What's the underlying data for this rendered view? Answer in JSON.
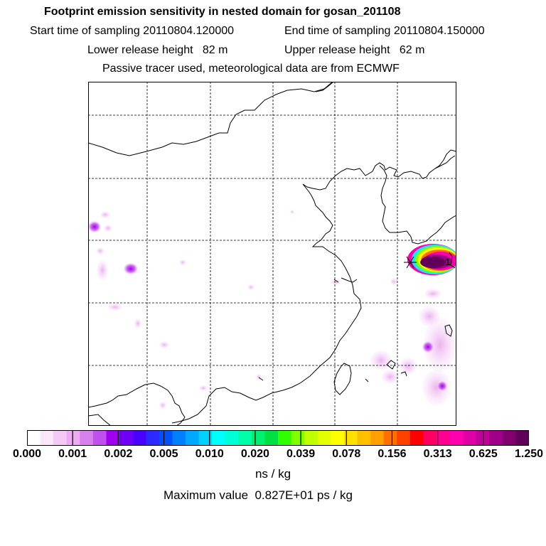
{
  "header": {
    "title": "Footprint emission sensitivity in nested domain for gosan_201108",
    "start_time": "Start time of sampling 20110804.120000",
    "end_time": "End time of sampling 20110804.150000",
    "lower_height": "Lower release height   82 m",
    "upper_height": "Upper release height   62 m",
    "note": "Passive tracer used, meteorological data are from ECMWF"
  },
  "colorbar": {
    "tick_labels": [
      "0.000",
      "0.001",
      "0.002",
      "0.005",
      "0.010",
      "0.020",
      "0.039",
      "0.078",
      "0.156",
      "0.313",
      "0.625",
      "1.250"
    ],
    "colors": [
      "#ffffff",
      "#fbe6fb",
      "#f5c8f5",
      "#eeaaf2",
      "#d980ef",
      "#c050ee",
      "#a000f0",
      "#7000f5",
      "#4a00ff",
      "#2a2aff",
      "#0050ff",
      "#0080ff",
      "#00a8ff",
      "#00d0ff",
      "#00ffff",
      "#00ffd8",
      "#00ffa8",
      "#00f070",
      "#00e040",
      "#30ff00",
      "#80ff00",
      "#c0ff00",
      "#e6ff00",
      "#ffff00",
      "#ffe000",
      "#ffc000",
      "#ffa000",
      "#ff7000",
      "#ff4000",
      "#ff0000",
      "#ff0060",
      "#ff0090",
      "#ff00b0",
      "#e000a8",
      "#c00098",
      "#a00088",
      "#800070",
      "#600058"
    ],
    "unit": "ns / kg"
  },
  "footer": {
    "max_value": "Maximum value  0.827E+01 ps / kg"
  },
  "map": {
    "release_point": "gosan",
    "release_marker_label": "1"
  }
}
